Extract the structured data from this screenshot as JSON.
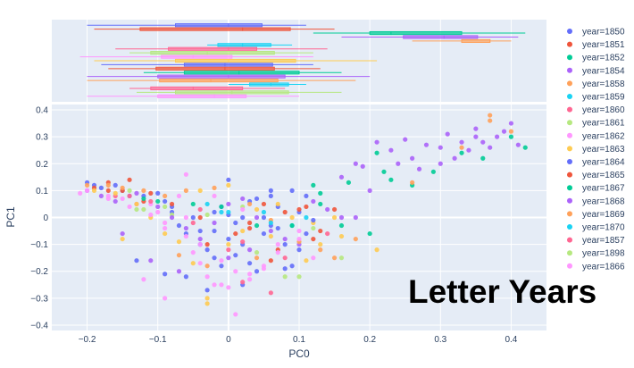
{
  "overlay_title": "Letter Years",
  "chart_data": {
    "type": "scatter",
    "xlabel": "PC0",
    "ylabel": "PC1",
    "xlim": [
      -0.25,
      0.45
    ],
    "ylim": [
      -0.42,
      0.42
    ],
    "x_ticks": [
      -0.2,
      -0.1,
      0,
      0.1,
      0.2,
      0.3,
      0.4
    ],
    "x_tick_labels": [
      "−0.2",
      "−0.1",
      "0",
      "0.1",
      "0.2",
      "0.3",
      "0.4"
    ],
    "y_ticks": [
      -0.4,
      -0.3,
      -0.2,
      -0.1,
      0,
      0.1,
      0.2,
      0.3,
      0.4
    ],
    "y_tick_labels": [
      "−0.4",
      "−0.3",
      "−0.2",
      "−0.1",
      "0",
      "0.1",
      "0.2",
      "0.3",
      "0.4"
    ],
    "grid": true,
    "marginal": "box plot per series along PC0 (top panel)",
    "legend_position": "right",
    "series": [
      {
        "name": "year=1850",
        "color": "#636efa",
        "points": [
          [
            -0.2,
            0.13
          ],
          [
            -0.19,
            0.12
          ],
          [
            -0.15,
            0.1
          ],
          [
            -0.12,
            0.08
          ],
          [
            -0.09,
            0.06
          ],
          [
            -0.08,
            0.02
          ],
          [
            -0.06,
            -0.06
          ],
          [
            -0.04,
            -0.1
          ],
          [
            -0.02,
            -0.15
          ],
          [
            -0.01,
            0.04
          ],
          [
            0,
            -0.08
          ],
          [
            0.01,
            -0.14
          ],
          [
            0.02,
            0.0
          ],
          [
            0.03,
            0.06
          ],
          [
            0.04,
            -0.2
          ],
          [
            0.05,
            0.0
          ],
          [
            0.06,
            -0.03
          ],
          [
            0.07,
            0.04
          ],
          [
            0.08,
            -0.1
          ],
          [
            0.09,
            -0.18
          ],
          [
            0.1,
            -0.12
          ],
          [
            0.11,
            -0.06
          ],
          [
            -0.13,
            -0.16
          ],
          [
            -0.09,
            -0.21
          ],
          [
            -0.03,
            -0.27
          ],
          [
            0.02,
            -0.25
          ],
          [
            0.0,
            0.01
          ],
          [
            0.04,
            0.07
          ],
          [
            0.06,
            0.1
          ],
          [
            -0.02,
            -0.05
          ]
        ]
      },
      {
        "name": "year=1851",
        "color": "#EF553B",
        "points": [
          [
            -0.19,
            0.11
          ],
          [
            -0.17,
            0.1
          ],
          [
            -0.14,
            0.14
          ],
          [
            -0.12,
            0.06
          ],
          [
            -0.03,
            -0.1
          ],
          [
            0.01,
            -0.06
          ],
          [
            0.03,
            -0.04
          ],
          [
            0.06,
            -0.16
          ],
          [
            0.08,
            0.02
          ],
          [
            0.12,
            -0.08
          ],
          [
            0.15,
            0.03
          ],
          [
            0.11,
            0.04
          ]
        ]
      },
      {
        "name": "year=1852",
        "color": "#00cc96",
        "points": [
          [
            0.13,
            0.09
          ],
          [
            0.17,
            0.13
          ],
          [
            0.21,
            0.24
          ],
          [
            0.22,
            0.17
          ],
          [
            0.23,
            0.14
          ],
          [
            0.26,
            0.12
          ],
          [
            0.29,
            0.17
          ],
          [
            0.33,
            0.24
          ],
          [
            0.36,
            0.22
          ],
          [
            0.4,
            0.3
          ],
          [
            0.42,
            0.26
          ],
          [
            0.12,
            0.12
          ],
          [
            0.2,
            -0.06
          ]
        ]
      },
      {
        "name": "year=1854",
        "color": "#ab63fa",
        "points": [
          [
            0.16,
            0.15
          ],
          [
            0.19,
            0.19
          ],
          [
            0.21,
            0.28
          ],
          [
            0.23,
            0.25
          ],
          [
            0.25,
            0.29
          ],
          [
            0.26,
            0.22
          ],
          [
            0.28,
            0.27
          ],
          [
            0.3,
            0.26
          ],
          [
            0.31,
            0.31
          ],
          [
            0.32,
            0.22
          ],
          [
            0.33,
            0.28
          ],
          [
            0.34,
            0.25
          ],
          [
            0.35,
            0.3
          ],
          [
            0.36,
            0.28
          ],
          [
            0.38,
            0.3
          ],
          [
            0.39,
            0.32
          ],
          [
            0.4,
            0.35
          ],
          [
            0.41,
            0.27
          ],
          [
            0.3,
            0.2
          ],
          [
            0.27,
            0.18
          ],
          [
            0.24,
            0.2
          ],
          [
            0.35,
            0.33
          ],
          [
            0.37,
            0.26
          ],
          [
            0.18,
            0.2
          ]
        ]
      },
      {
        "name": "year=1858",
        "color": "#FFA15A",
        "points": [
          [
            0.26,
            0.13
          ],
          [
            0.33,
            0.26
          ],
          [
            0.37,
            0.36
          ],
          [
            0.37,
            0.38
          ],
          [
            0.4,
            0.32
          ]
        ]
      },
      {
        "name": "year=1859",
        "color": "#19d3f3",
        "points": [
          [
            -0.03,
            0.05
          ],
          [
            0.05,
            0.02
          ],
          [
            0.09,
            -0.03
          ],
          [
            -0.01,
            0.02
          ]
        ]
      },
      {
        "name": "year=1860",
        "color": "#FF6692",
        "points": [
          [
            -0.16,
            0.08
          ],
          [
            -0.13,
            0.05
          ],
          [
            -0.04,
            0.03
          ],
          [
            0.0,
            -0.12
          ],
          [
            0.02,
            -0.24
          ],
          [
            0.06,
            -0.28
          ],
          [
            0.14,
            -0.06
          ]
        ]
      },
      {
        "name": "year=1861",
        "color": "#B6E880",
        "points": [
          [
            -0.14,
            0.1
          ],
          [
            -0.12,
            0.03
          ],
          [
            -0.08,
            0.01
          ],
          [
            0.08,
            -0.22
          ],
          [
            0.12,
            -0.04
          ],
          [
            0.02,
            0.04
          ]
        ]
      },
      {
        "name": "year=1862",
        "color": "#FF97FF",
        "points": [
          [
            -0.21,
            0.09
          ],
          [
            -0.17,
            0.08
          ],
          [
            -0.15,
            0.07
          ],
          [
            -0.11,
            0.05
          ],
          [
            -0.1,
            0.02
          ],
          [
            -0.09,
            -0.04
          ],
          [
            -0.07,
            0.08
          ],
          [
            -0.06,
            0.0
          ],
          [
            -0.05,
            -0.13
          ],
          [
            -0.04,
            -0.17
          ],
          [
            -0.03,
            -0.22
          ],
          [
            -0.02,
            -0.25
          ],
          [
            -0.01,
            -0.25
          ],
          [
            0.0,
            -0.26
          ],
          [
            0.01,
            -0.36
          ],
          [
            0.03,
            -0.21
          ],
          [
            0.05,
            -0.18
          ],
          [
            0.07,
            -0.1
          ],
          [
            0.1,
            -0.05
          ],
          [
            0.12,
            -0.15
          ],
          [
            -0.12,
            -0.23
          ],
          [
            -0.09,
            -0.3
          ],
          [
            -0.06,
            0.16
          ]
        ]
      },
      {
        "name": "year=1863",
        "color": "#FECB52",
        "points": [
          [
            -0.19,
            0.1
          ],
          [
            -0.16,
            0.09
          ],
          [
            -0.13,
            0.05
          ],
          [
            -0.11,
            0.0
          ],
          [
            -0.09,
            -0.06
          ],
          [
            -0.07,
            -0.09
          ],
          [
            -0.05,
            -0.17
          ],
          [
            -0.03,
            -0.3
          ],
          [
            -0.03,
            -0.32
          ],
          [
            0.0,
            -0.1
          ],
          [
            0.02,
            -0.05
          ],
          [
            0.04,
            0.03
          ],
          [
            0.06,
            -0.07
          ],
          [
            0.09,
            0.0
          ],
          [
            0.11,
            -0.16
          ],
          [
            0.13,
            -0.1
          ],
          [
            0.15,
            0.0
          ],
          [
            0.16,
            -0.07
          ],
          [
            0.21,
            -0.12
          ],
          [
            -0.15,
            -0.08
          ],
          [
            -0.04,
            0.1
          ],
          [
            0.0,
            0.12
          ],
          [
            0.07,
            0.05
          ],
          [
            0.12,
            -0.02
          ]
        ]
      },
      {
        "name": "year=1864",
        "color": "#636efa",
        "points": [
          [
            -0.18,
            0.11
          ],
          [
            -0.16,
            0.12
          ],
          [
            -0.14,
            0.08
          ],
          [
            -0.1,
            0.09
          ],
          [
            -0.08,
            0.04
          ],
          [
            -0.07,
            -0.03
          ],
          [
            -0.05,
            0.0
          ],
          [
            -0.04,
            -0.05
          ],
          [
            -0.02,
            0.02
          ],
          [
            0.0,
            0.14
          ],
          [
            0.01,
            -0.02
          ],
          [
            0.02,
            -0.1
          ],
          [
            0.03,
            -0.17
          ],
          [
            0.05,
            -0.06
          ],
          [
            0.07,
            -0.04
          ],
          [
            0.08,
            -0.19
          ],
          [
            0.1,
            0.02
          ],
          [
            0.12,
            -0.01
          ],
          [
            -0.06,
            -0.22
          ],
          [
            -0.03,
            -0.12
          ],
          [
            0.06,
            0.08
          ],
          [
            0.09,
            0.1
          ],
          [
            0.11,
            0.08
          ],
          [
            -0.01,
            -0.18
          ]
        ]
      },
      {
        "name": "year=1865",
        "color": "#EF553B",
        "points": [
          [
            -0.17,
            0.13
          ],
          [
            -0.15,
            0.1
          ],
          [
            -0.11,
            0.09
          ],
          [
            -0.08,
            0.05
          ],
          [
            -0.04,
            0.0
          ],
          [
            0.03,
            -0.02
          ],
          [
            0.05,
            0.05
          ],
          [
            0.07,
            -0.12
          ],
          [
            0.1,
            0.03
          ],
          [
            0.13,
            -0.05
          ]
        ]
      },
      {
        "name": "year=1867",
        "color": "#00cc96",
        "points": [
          [
            -0.12,
            0.07
          ],
          [
            -0.1,
            0.06
          ],
          [
            -0.05,
            0.05
          ],
          [
            -0.01,
            0.04
          ],
          [
            0.04,
            -0.03
          ],
          [
            0.09,
            -0.03
          ],
          [
            0.13,
            0.05
          ],
          [
            0.16,
            -0.03
          ]
        ]
      },
      {
        "name": "year=1868",
        "color": "#ab63fa",
        "points": [
          [
            -0.2,
            0.1
          ],
          [
            -0.18,
            0.08
          ],
          [
            -0.16,
            0.06
          ],
          [
            -0.13,
            0.09
          ],
          [
            -0.1,
            0.04
          ],
          [
            -0.08,
            0.0
          ],
          [
            -0.06,
            -0.04
          ],
          [
            -0.04,
            -0.08
          ],
          [
            -0.02,
            -0.02
          ],
          [
            0.0,
            0.05
          ],
          [
            0.02,
            0.07
          ],
          [
            0.04,
            0.0
          ],
          [
            0.06,
            -0.05
          ],
          [
            0.08,
            -0.08
          ],
          [
            0.1,
            -0.1
          ],
          [
            0.12,
            0.06
          ],
          [
            0.14,
            0.03
          ],
          [
            0.16,
            0.0
          ],
          [
            0.18,
            0.0
          ],
          [
            0.2,
            0.1
          ],
          [
            -0.15,
            -0.06
          ],
          [
            -0.11,
            -0.16
          ],
          [
            -0.07,
            -0.2
          ],
          [
            0.0,
            -0.15
          ],
          [
            0.03,
            -0.12
          ]
        ]
      },
      {
        "name": "year=1869",
        "color": "#FFA15A",
        "points": [
          [
            -0.2,
            0.12
          ],
          [
            -0.17,
            0.12
          ],
          [
            -0.15,
            0.11
          ],
          [
            -0.12,
            0.1
          ],
          [
            -0.09,
            0.08
          ],
          [
            -0.06,
            0.1
          ],
          [
            -0.02,
            0.11
          ],
          [
            0.03,
            0.05
          ],
          [
            0.06,
            -0.01
          ],
          [
            0.1,
            -0.09
          ],
          [
            0.13,
            -0.12
          ],
          [
            0.15,
            -0.15
          ],
          [
            0.18,
            -0.08
          ],
          [
            -0.07,
            -0.14
          ],
          [
            -0.03,
            -0.18
          ],
          [
            0.04,
            -0.15
          ]
        ]
      },
      {
        "name": "year=1870",
        "color": "#19d3f3",
        "points": [
          [
            0.0,
            0.02
          ],
          [
            0.06,
            -0.02
          ],
          [
            0.11,
            0.0
          ]
        ]
      },
      {
        "name": "year=1857",
        "color": "#FF6692",
        "points": [
          [
            -0.14,
            0.08
          ],
          [
            -0.11,
            0.06
          ],
          [
            -0.05,
            -0.02
          ],
          [
            0.02,
            -0.09
          ],
          [
            0.08,
            -0.15
          ]
        ]
      },
      {
        "name": "year=1898",
        "color": "#B6E880",
        "points": [
          [
            -0.13,
            0.03
          ],
          [
            -0.09,
            0.04
          ],
          [
            -0.03,
            0.01
          ],
          [
            0.04,
            -0.13
          ],
          [
            0.1,
            -0.22
          ],
          [
            0.16,
            -0.15
          ]
        ]
      },
      {
        "name": "year=1866",
        "color": "#FF97FF",
        "points": [
          [
            -0.2,
            0.1
          ],
          [
            -0.17,
            0.07
          ],
          [
            -0.14,
            0.04
          ],
          [
            -0.11,
            0.01
          ],
          [
            -0.09,
            -0.02
          ],
          [
            -0.06,
            -0.07
          ],
          [
            -0.04,
            -0.1
          ],
          [
            -0.01,
            -0.16
          ],
          [
            0.01,
            -0.2
          ],
          [
            0.03,
            -0.23
          ],
          [
            0.05,
            -0.19
          ],
          [
            0.07,
            -0.13
          ],
          [
            0.1,
            -0.08
          ],
          [
            -0.02,
            0.08
          ],
          [
            0.02,
            0.03
          ]
        ]
      }
    ]
  }
}
